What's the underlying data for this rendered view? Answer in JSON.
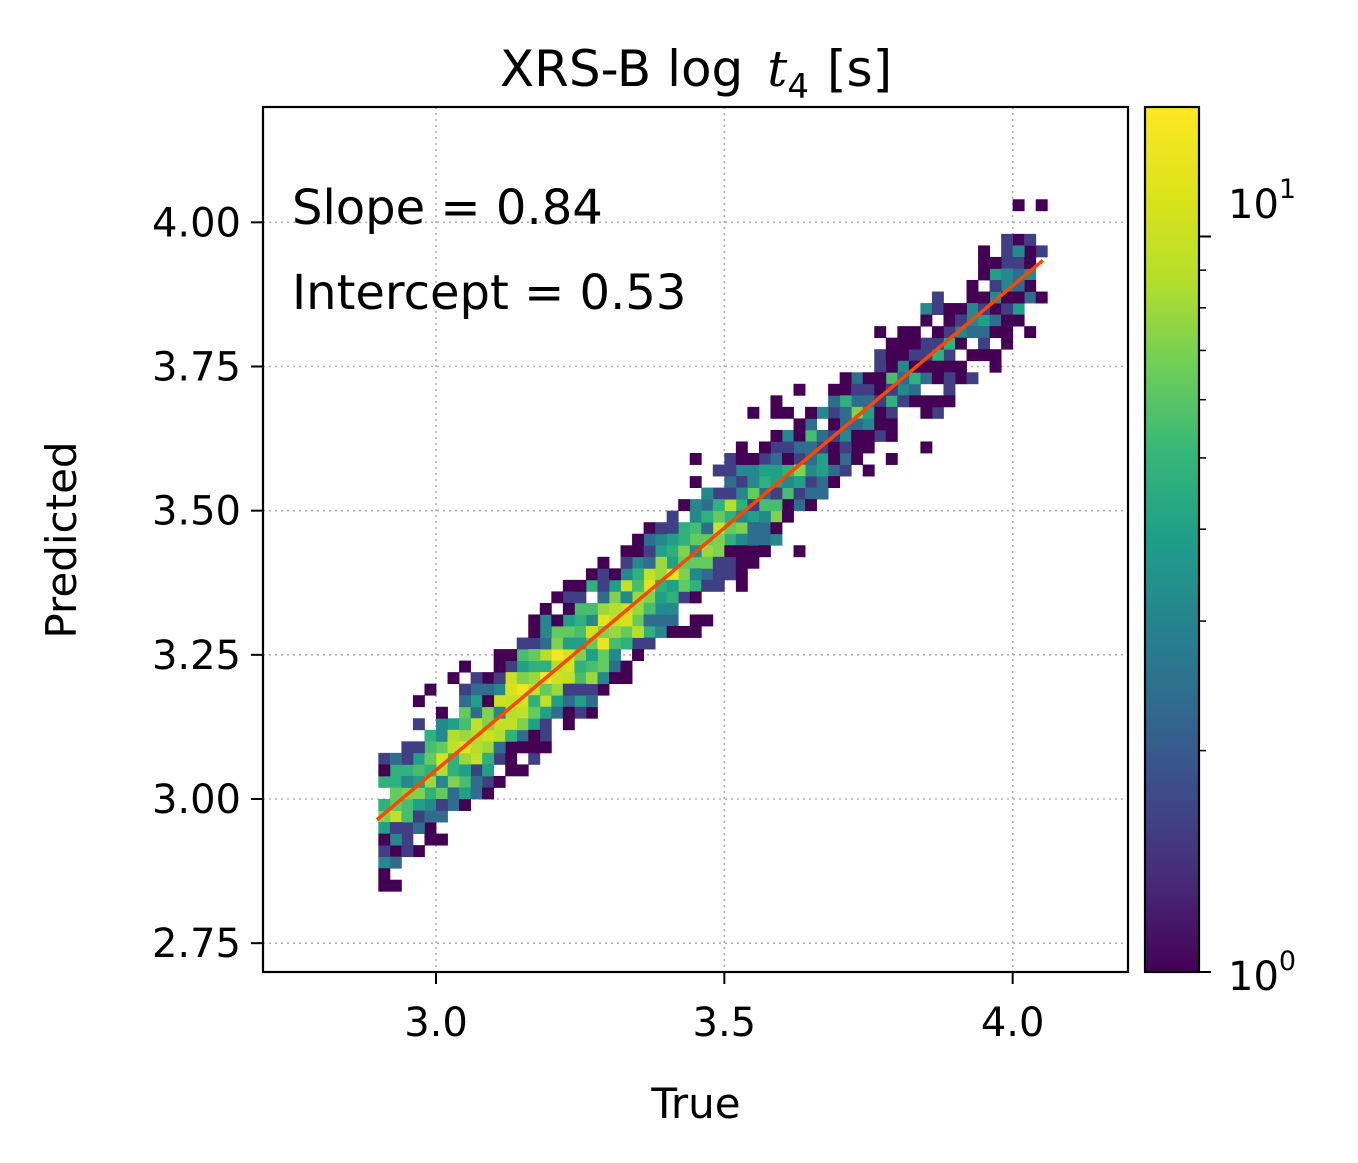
{
  "chart_data": {
    "type": "heatmap",
    "title_text": "XRS-B log",
    "title_var": "t",
    "title_sub": "4",
    "title_units": "[s]",
    "xlabel": "True",
    "ylabel": "Predicted",
    "xlim": [
      2.7,
      4.2
    ],
    "ylim": [
      2.7,
      4.2
    ],
    "xticks": [
      3.0,
      3.5,
      4.0
    ],
    "xtick_labels": [
      "3.0",
      "3.5",
      "4.0"
    ],
    "yticks": [
      2.75,
      3.0,
      3.25,
      3.5,
      3.75,
      4.0
    ],
    "ytick_labels": [
      "2.75",
      "3.00",
      "3.25",
      "3.50",
      "3.75",
      "4.00"
    ],
    "grid": true,
    "colormap": "viridis",
    "color_scale": "log",
    "colorbar_range": [
      1,
      15
    ],
    "colorbar_tick_values": [
      1,
      10
    ],
    "colorbar_tick_base": [
      "10",
      "10"
    ],
    "colorbar_tick_exp": [
      "0",
      "1"
    ],
    "fit_line": {
      "slope": 0.84,
      "intercept": 0.53,
      "x_range": [
        2.9,
        4.05
      ],
      "color": "#ff4500"
    },
    "annotations": [
      "Slope = 0.84",
      "Intercept = 0.53"
    ],
    "histogram": {
      "bin_size": 0.02,
      "density_peak": [
        3.2,
        3.2
      ],
      "spread_along": 0.23,
      "spread_across": 0.045,
      "max_count": 15
    }
  }
}
